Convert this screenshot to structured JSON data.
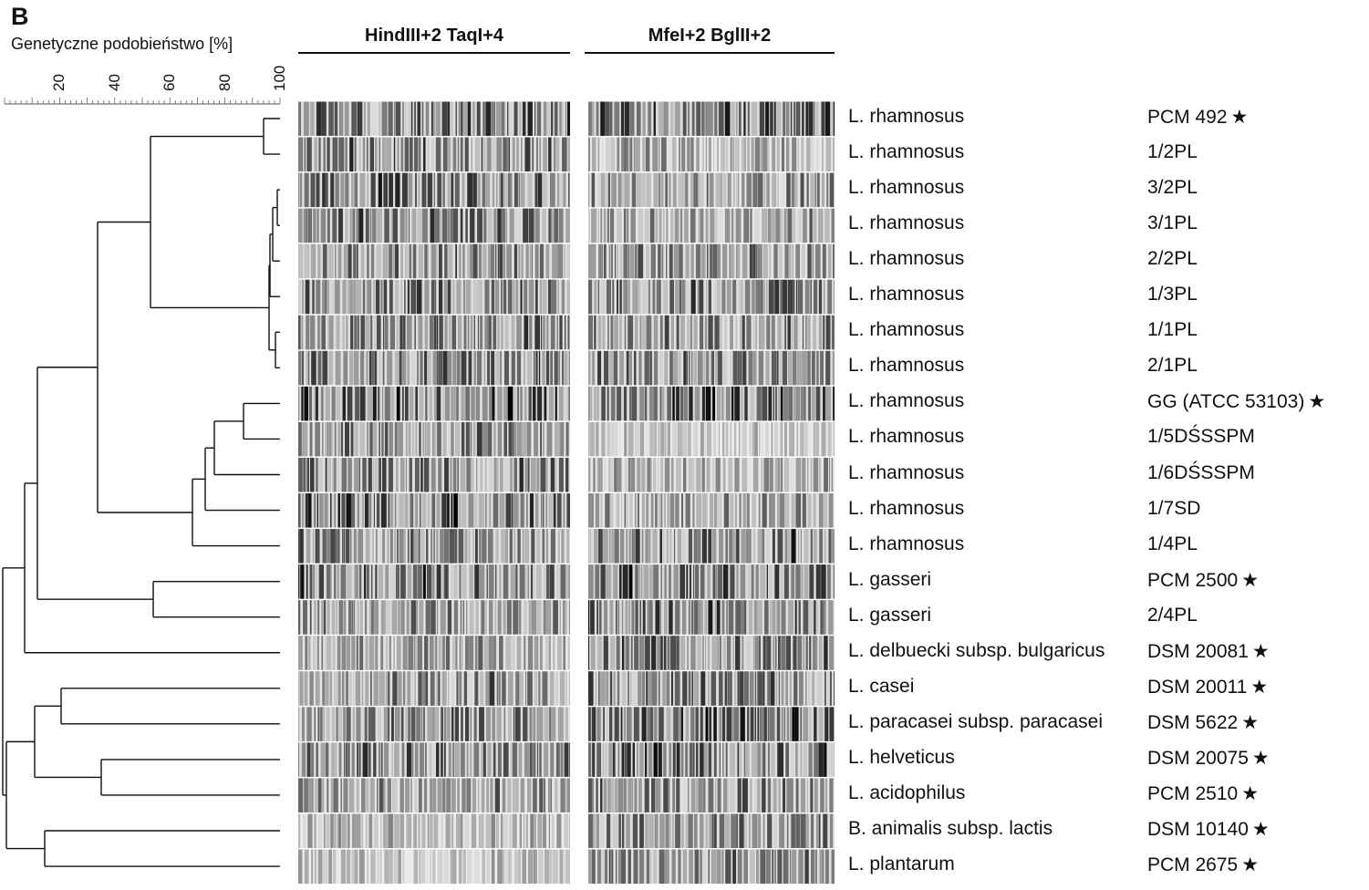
{
  "panel_letter": "B",
  "scale": {
    "title": "Genetyczne podobieństwo [%]",
    "ticks": [
      "20",
      "40",
      "60",
      "80",
      "100"
    ]
  },
  "groups": [
    {
      "label": "HindIII+2 TaqI+4"
    },
    {
      "label": "MfeI+2 BglII+2"
    }
  ],
  "star_glyph": "★",
  "rows": [
    {
      "species": "L. rhamnosus",
      "strain": "PCM 492",
      "star": true
    },
    {
      "species": "L. rhamnosus",
      "strain": "1/2PL",
      "star": false
    },
    {
      "species": "L. rhamnosus",
      "strain": "3/2PL",
      "star": false
    },
    {
      "species": "L. rhamnosus",
      "strain": "3/1PL",
      "star": false
    },
    {
      "species": "L. rhamnosus",
      "strain": "2/2PL",
      "star": false
    },
    {
      "species": "L. rhamnosus",
      "strain": "1/3PL",
      "star": false
    },
    {
      "species": "L. rhamnosus",
      "strain": "1/1PL",
      "star": false
    },
    {
      "species": "L. rhamnosus",
      "strain": "2/1PL",
      "star": false
    },
    {
      "species": "L. rhamnosus",
      "strain": "GG (ATCC 53103)",
      "star": true
    },
    {
      "species": "L. rhamnosus",
      "strain": "1/5DŚSSPM",
      "star": false
    },
    {
      "species": "L. rhamnosus",
      "strain": "1/6DŚSSPM",
      "star": false
    },
    {
      "species": "L. rhamnosus",
      "strain": "1/7SD",
      "star": false
    },
    {
      "species": "L. rhamnosus",
      "strain": "1/4PL",
      "star": false
    },
    {
      "species": "L. gasseri",
      "strain": "PCM 2500",
      "star": true
    },
    {
      "species": "L. gasseri",
      "strain": "2/4PL",
      "star": false
    },
    {
      "species": "L. delbuecki subsp. bulgaricus",
      "strain": "DSM 20081",
      "star": true
    },
    {
      "species": "L. casei",
      "strain": "DSM 20011",
      "star": true
    },
    {
      "species": "L. paracasei subsp. paracasei",
      "strain": "DSM 5622",
      "star": true
    },
    {
      "species": "L. helveticus",
      "strain": "DSM 20075",
      "star": true
    },
    {
      "species": "L. acidophilus",
      "strain": "PCM 2510",
      "star": true
    },
    {
      "species": "B. animalis subsp. lactis",
      "strain": "DSM 10140",
      "star": true
    },
    {
      "species": "L. plantarum",
      "strain": "PCM 2675",
      "star": true
    }
  ]
}
